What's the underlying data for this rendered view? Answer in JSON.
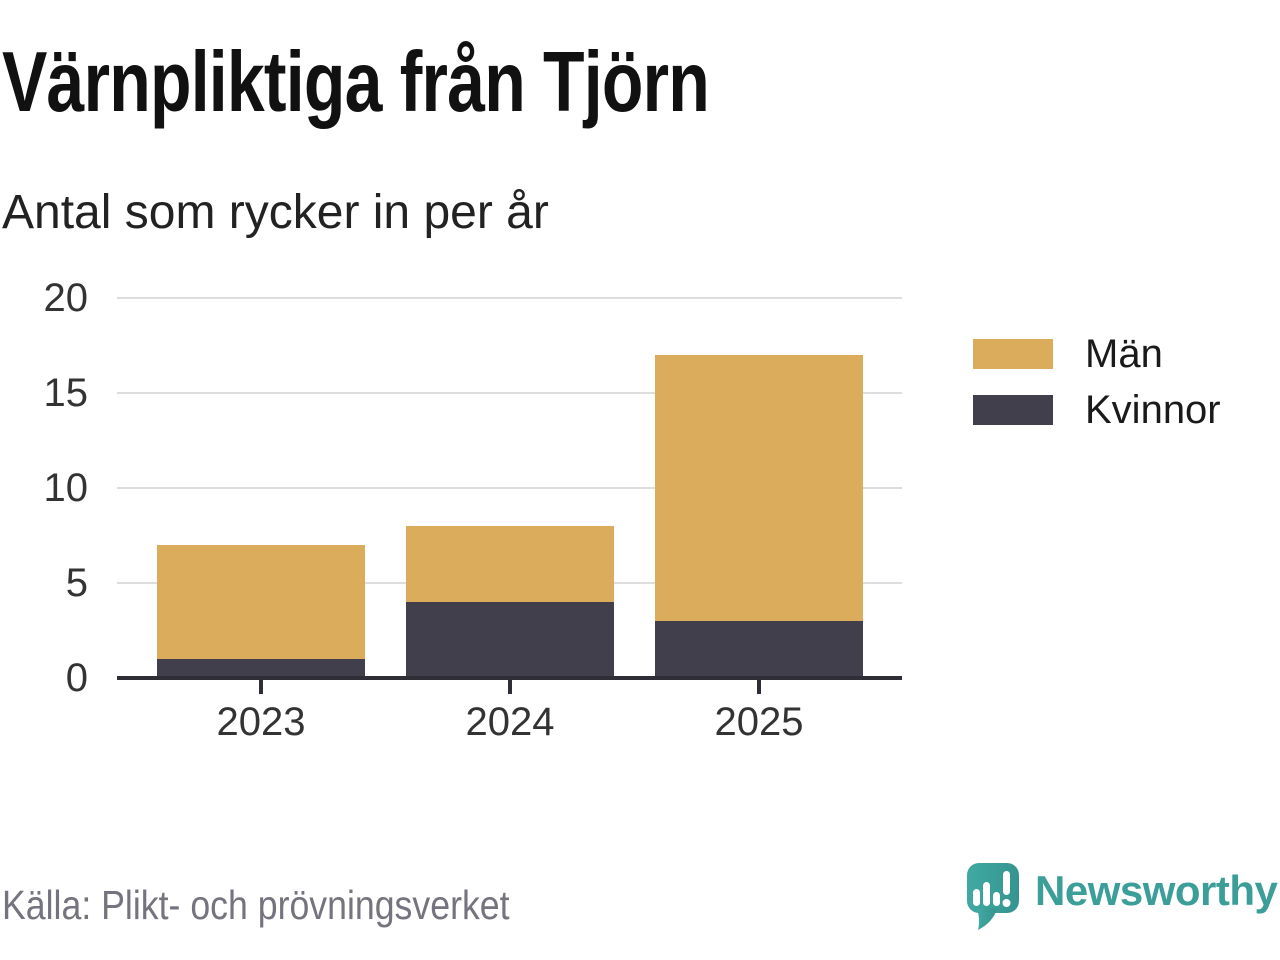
{
  "header": {
    "title": "Värnpliktiga från Tjörn",
    "subtitle": "Antal som rycker in per år"
  },
  "chart_data": {
    "type": "bar",
    "stacked": true,
    "categories": [
      "2023",
      "2024",
      "2025"
    ],
    "series": [
      {
        "name": "Män",
        "color": "#dbac5c",
        "values": [
          6,
          4,
          14
        ]
      },
      {
        "name": "Kvinnor",
        "color": "#413f4c",
        "values": [
          1,
          4,
          3
        ]
      }
    ],
    "stack_order_bottom_to_top": [
      "Kvinnor",
      "Män"
    ],
    "totals": [
      7,
      8,
      17
    ],
    "y_ticks": [
      0,
      5,
      10,
      15,
      20
    ],
    "ylim": [
      0,
      20
    ],
    "xlabel": "",
    "ylabel": "",
    "grid": true,
    "legend_position": "right"
  },
  "legend": {
    "items": [
      {
        "label": "Män",
        "color": "#dbac5c"
      },
      {
        "label": "Kvinnor",
        "color": "#413f4c"
      }
    ]
  },
  "colors": {
    "men": "#dbac5c",
    "women": "#413f4c",
    "grid": "#dddddd",
    "axis": "#2f2e36",
    "source_text": "#75747e",
    "brand_teal": "#3c9e99"
  },
  "footer": {
    "source": "Källa: Plikt- och prövningsverket",
    "brand_name": "Newsworthy"
  }
}
